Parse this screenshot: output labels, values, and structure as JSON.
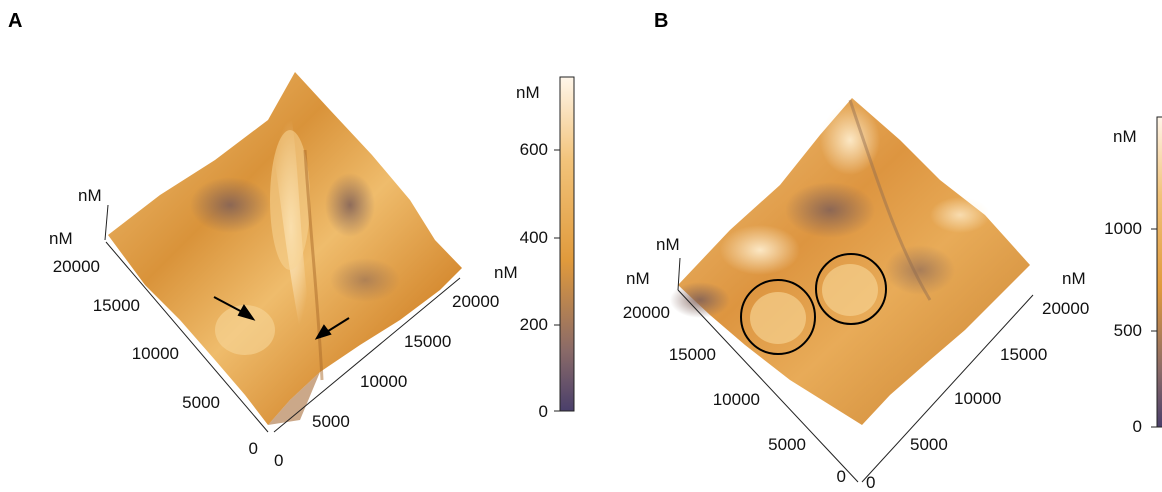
{
  "panels": [
    {
      "letter": "A",
      "axis_labels": {
        "z_unit": "nM",
        "y_unit": "nM",
        "x_unit": "nM"
      },
      "y_ticks": [
        "20000",
        "15000",
        "10000",
        "5000",
        "0"
      ],
      "x_ticks": [
        "0",
        "5000",
        "10000",
        "15000",
        "20000"
      ],
      "colorbar": {
        "unit": "nM",
        "ticks": [
          "600",
          "400",
          "200",
          "0"
        ]
      },
      "annotations": {
        "arrows": 2
      }
    },
    {
      "letter": "B",
      "axis_labels": {
        "z_unit": "nM",
        "y_unit": "nM",
        "x_unit": "nM"
      },
      "y_ticks": [
        "20000",
        "15000",
        "10000",
        "5000",
        "0"
      ],
      "x_ticks": [
        "0",
        "5000",
        "10000",
        "15000",
        "20000"
      ],
      "colorbar": {
        "unit": "nM",
        "ticks": [
          "1000",
          "500",
          "0"
        ]
      },
      "annotations": {
        "circles": 2
      }
    }
  ],
  "colors": {
    "surface_light": "#f6d9a0",
    "surface_mid": "#e09a3c",
    "surface_dark": "#8a6a68",
    "colorbar_low": "#4a3f6b",
    "colorbar_high": "#fff6ea"
  }
}
